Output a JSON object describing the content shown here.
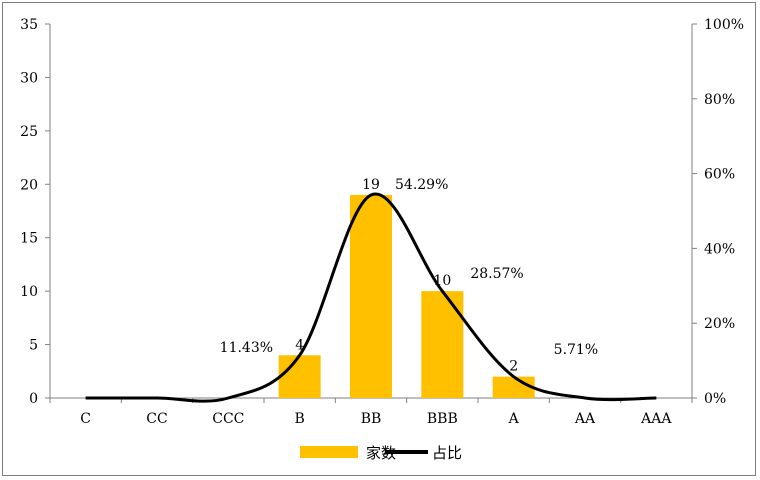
{
  "chart_data": {
    "type": "bar+line",
    "categories": [
      "C",
      "CC",
      "CCC",
      "B",
      "BB",
      "BBB",
      "A",
      "AA",
      "AAA"
    ],
    "series": [
      {
        "name": "家数",
        "type": "bar",
        "axis": "left",
        "values": [
          0,
          0,
          0,
          4,
          19,
          10,
          2,
          0,
          0
        ],
        "color": "#FFC000"
      },
      {
        "name": "占比",
        "type": "line",
        "axis": "right",
        "values": [
          0,
          0,
          0,
          11.43,
          54.29,
          28.57,
          5.71,
          0,
          0
        ],
        "color": "#000000"
      }
    ],
    "bar_labels": [
      "",
      "",
      "",
      "4",
      "19",
      "10",
      "2",
      "",
      ""
    ],
    "line_labels": [
      "",
      "",
      "",
      "11.43%",
      "54.29%",
      "28.57%",
      "5.71%",
      "",
      ""
    ],
    "left_axis": {
      "min": 0,
      "max": 35,
      "step": 5,
      "ticks": [
        "0",
        "5",
        "10",
        "15",
        "20",
        "25",
        "30",
        "35"
      ]
    },
    "right_axis": {
      "min": 0,
      "max": 100,
      "step": 20,
      "ticks": [
        "0%",
        "20%",
        "40%",
        "60%",
        "80%",
        "100%"
      ]
    },
    "legend_position": "bottom",
    "grid": false
  },
  "legend": {
    "bar_label": "家数",
    "line_label": "占比"
  }
}
